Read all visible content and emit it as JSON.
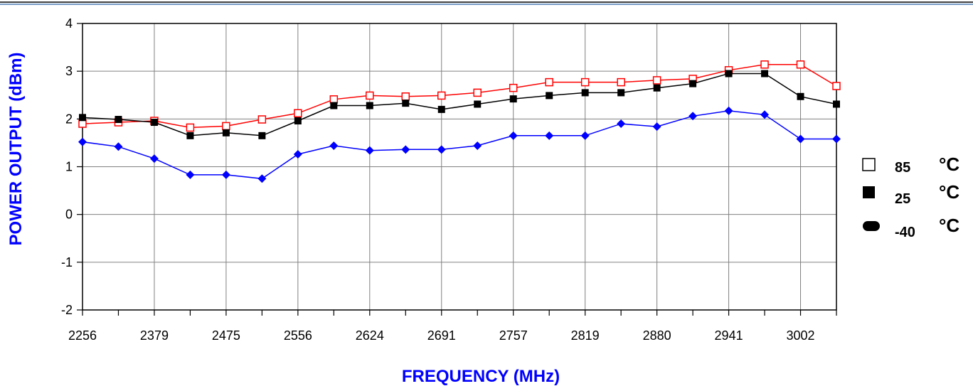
{
  "chart_data": {
    "type": "line",
    "xlabel": "FREQUENCY (MHz)",
    "ylabel": "POWER OUTPUT (dBm)",
    "ylim": [
      -2,
      4
    ],
    "yticks": [
      "4",
      "3",
      "2",
      "1",
      "0",
      "-1",
      "-2"
    ],
    "grid": true,
    "legend_position": "right",
    "x_tick_labels": [
      "2256",
      "2379",
      "2475",
      "2556",
      "2624",
      "2691",
      "2757",
      "2819",
      "2880",
      "2941",
      "3002"
    ],
    "categories": [
      "2256",
      "2318",
      "2379",
      "2427",
      "2475",
      "2516",
      "2556",
      "2590",
      "2624",
      "2658",
      "2691",
      "2724",
      "2757",
      "2788",
      "2819",
      "2850",
      "2880",
      "2911",
      "2941",
      "2972",
      "3002",
      "3030"
    ],
    "series": [
      {
        "name": "85",
        "unit": "°C",
        "color": "#ff0000",
        "marker": "open-square",
        "values": [
          1.9,
          1.93,
          1.96,
          1.82,
          1.85,
          1.99,
          2.12,
          2.41,
          2.49,
          2.47,
          2.49,
          2.55,
          2.65,
          2.77,
          2.77,
          2.77,
          2.81,
          2.84,
          3.02,
          3.14,
          3.14,
          2.69
        ]
      },
      {
        "name": "25",
        "unit": "°C",
        "color": "#000000",
        "marker": "filled-square",
        "values": [
          2.03,
          1.99,
          1.93,
          1.65,
          1.71,
          1.65,
          1.96,
          2.28,
          2.28,
          2.33,
          2.2,
          2.31,
          2.42,
          2.49,
          2.55,
          2.55,
          2.65,
          2.74,
          2.95,
          2.95,
          2.47,
          2.31
        ]
      },
      {
        "name": "-40",
        "unit": "°C",
        "color": "#0000ff",
        "marker": "diamond",
        "values": [
          1.52,
          1.42,
          1.17,
          0.83,
          0.83,
          0.75,
          1.26,
          1.44,
          1.34,
          1.36,
          1.36,
          1.44,
          1.65,
          1.65,
          1.65,
          1.9,
          1.84,
          2.06,
          2.17,
          2.09,
          1.58,
          1.58
        ]
      }
    ]
  },
  "colors": {
    "axis_title": "#0000ff",
    "grid": "#808080",
    "frame": "#000000"
  }
}
